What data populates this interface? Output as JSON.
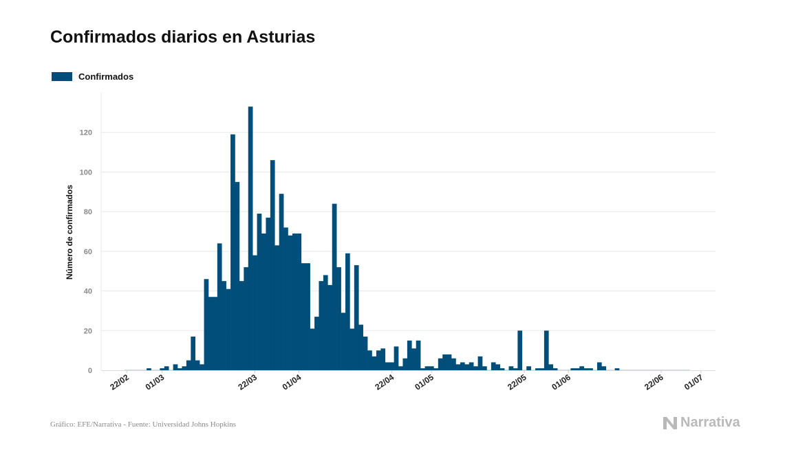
{
  "colors": {
    "bar": "#004e79",
    "grid": "#e8e8e8",
    "tick": "#8a8a8a",
    "axis": "#444444",
    "brand": "#b9b9b9"
  },
  "footer": {
    "source": "Gráfico: EFE/Narrativa - Fuente: Universidad Johns Hopkins"
  },
  "brand": {
    "name": "Narrativa",
    "icon": "narrativa-logo-icon"
  },
  "chart_data": {
    "type": "bar",
    "title": "Confirmados diarios en Asturias",
    "ylabel": "Número de confirmados",
    "xlabel": "",
    "ylim": [
      0,
      140
    ],
    "yticks": [
      0,
      20,
      40,
      60,
      80,
      100,
      120
    ],
    "grid": true,
    "legend_position": "top-left",
    "x_start_date": "2020-02-22",
    "xtick_labels": [
      {
        "label": "22/02",
        "date": "2020-02-22"
      },
      {
        "label": "01/03",
        "date": "2020-03-01"
      },
      {
        "label": "22/03",
        "date": "2020-03-22"
      },
      {
        "label": "01/04",
        "date": "2020-04-01"
      },
      {
        "label": "22/04",
        "date": "2020-04-22"
      },
      {
        "label": "01/05",
        "date": "2020-05-01"
      },
      {
        "label": "22/05",
        "date": "2020-05-22"
      },
      {
        "label": "01/06",
        "date": "2020-06-01"
      },
      {
        "label": "22/06",
        "date": "2020-06-22"
      },
      {
        "label": "01/07",
        "date": "2020-07-01"
      }
    ],
    "series": [
      {
        "name": "Confirmados",
        "values": [
          0,
          0,
          0,
          0,
          0,
          1,
          0,
          0,
          1,
          2,
          0,
          3,
          1,
          2,
          5,
          17,
          5,
          3,
          46,
          37,
          37,
          64,
          45,
          41,
          119,
          95,
          45,
          52,
          133,
          58,
          79,
          69,
          77,
          106,
          63,
          89,
          72,
          68,
          69,
          69,
          54,
          54,
          21,
          27,
          45,
          48,
          43,
          84,
          52,
          29,
          59,
          21,
          53,
          23,
          17,
          10,
          7,
          10,
          11,
          4,
          4,
          12,
          2,
          6,
          15,
          11,
          15,
          1,
          2,
          2,
          1,
          6,
          8,
          8,
          6,
          3,
          4,
          3,
          4,
          2,
          7,
          2,
          0,
          4,
          3,
          1,
          0,
          2,
          1,
          20,
          0,
          2,
          0,
          1,
          1,
          20,
          3,
          1,
          0,
          0,
          0,
          1,
          1,
          2,
          1,
          1,
          0,
          4,
          2,
          0,
          0,
          1,
          0,
          0,
          0,
          0,
          0,
          0,
          0,
          0,
          0,
          0,
          0,
          0,
          0,
          0,
          0,
          0
        ]
      }
    ]
  }
}
